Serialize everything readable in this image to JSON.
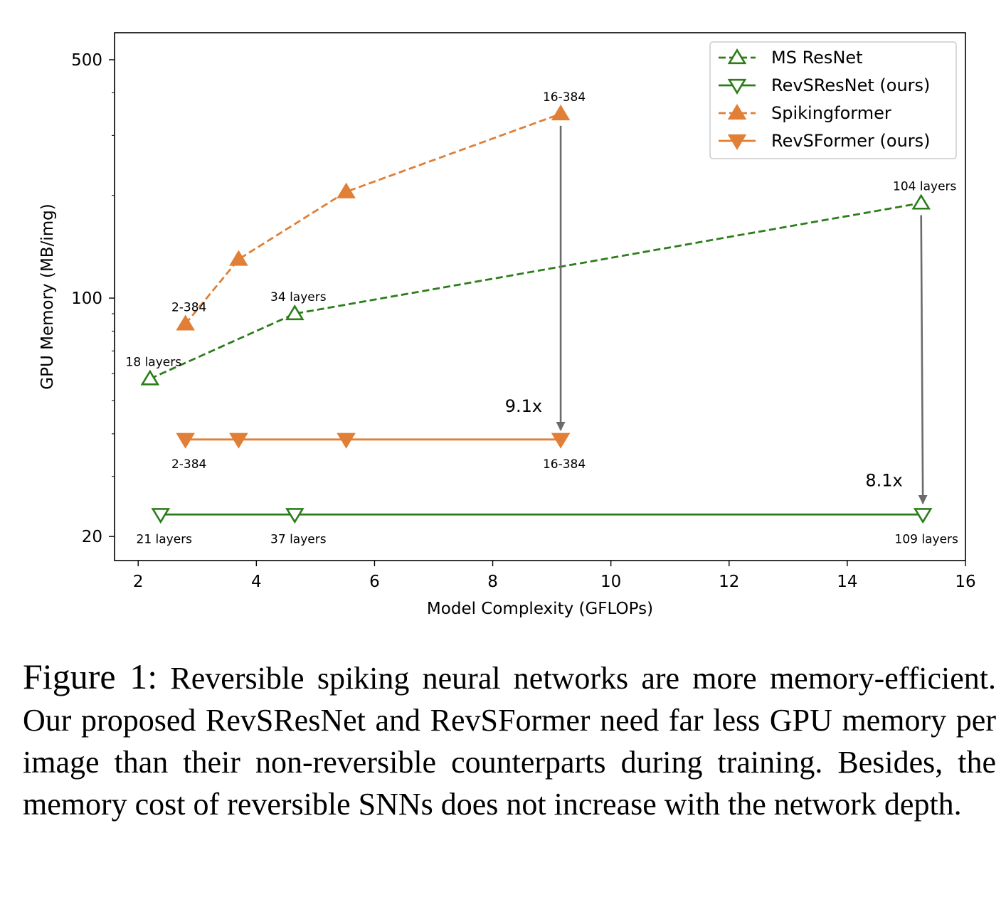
{
  "chart_data": {
    "type": "line",
    "xlabel": "Model Complexity (GFLOPs)",
    "ylabel": "GPU Memory (MB/img)",
    "xlim": [
      1.6,
      16
    ],
    "ylim": [
      17,
      600
    ],
    "yscale": "log",
    "x_ticks": [
      2,
      4,
      6,
      8,
      10,
      12,
      14,
      16
    ],
    "y_ticks": [
      20,
      100,
      500
    ],
    "y_minor_ticks": [
      30,
      40,
      50,
      60,
      70,
      80,
      90,
      200,
      300,
      400
    ],
    "grid": false,
    "legend_position": "top-right",
    "series": [
      {
        "name": "MS ResNet",
        "color": "#2c7e1a",
        "linestyle": "dashed",
        "marker": "triangle-up-open",
        "x": [
          2.2,
          4.65,
          15.25
        ],
        "y": [
          58,
          90,
          190
        ]
      },
      {
        "name": "RevSResNet (ours)",
        "color": "#2c7e1a",
        "linestyle": "solid",
        "marker": "triangle-down-open",
        "x": [
          2.38,
          4.65,
          15.28
        ],
        "y": [
          23.2,
          23.2,
          23.2
        ]
      },
      {
        "name": "Spikingformer",
        "color": "#e07f35",
        "linestyle": "dashed",
        "marker": "triangle-up-filled",
        "x": [
          2.8,
          3.7,
          5.52,
          9.15
        ],
        "y": [
          84,
          130,
          205,
          347
        ]
      },
      {
        "name": "RevSFormer (ours)",
        "color": "#e07f35",
        "linestyle": "solid",
        "marker": "triangle-down-filled",
        "x": [
          2.8,
          3.7,
          5.52,
          9.15
        ],
        "y": [
          38.5,
          38.5,
          38.5,
          38.5
        ]
      }
    ],
    "annotations": [
      {
        "text": "18 layers",
        "x": 2.2,
        "y": 58,
        "pos": "above"
      },
      {
        "text": "34 layers",
        "x": 4.65,
        "y": 90,
        "pos": "above"
      },
      {
        "text": "104 layers",
        "x": 15.25,
        "y": 190,
        "pos": "above"
      },
      {
        "text": "21 layers",
        "x": 2.38,
        "y": 23.2,
        "pos": "below"
      },
      {
        "text": "37 layers",
        "x": 4.65,
        "y": 23.2,
        "pos": "below"
      },
      {
        "text": "109 layers",
        "x": 15.28,
        "y": 23.2,
        "pos": "below"
      },
      {
        "text": "2-384",
        "x": 2.8,
        "y": 84,
        "pos": "above"
      },
      {
        "text": "16-384",
        "x": 9.15,
        "y": 347,
        "pos": "above"
      },
      {
        "text": "2-384",
        "x": 2.8,
        "y": 38.5,
        "pos": "below"
      },
      {
        "text": "16-384",
        "x": 9.15,
        "y": 38.5,
        "pos": "below"
      }
    ],
    "arrows": [
      {
        "label": "9.1x",
        "x_from": 9.15,
        "y_from": 320,
        "x_to": 9.15,
        "y_to": 41
      },
      {
        "label": "8.1x",
        "x_from": 15.25,
        "y_from": 175,
        "x_to": 15.28,
        "y_to": 25
      }
    ]
  },
  "caption": {
    "label": "Figure 1:",
    "text": "Reversible spiking neural networks are more memory-efficient. Our proposed RevSResNet and RevSFormer need far less GPU memory per image than their non-reversible counterparts during training. Besides, the memory cost of reversible SNNs does not increase with the network depth."
  }
}
